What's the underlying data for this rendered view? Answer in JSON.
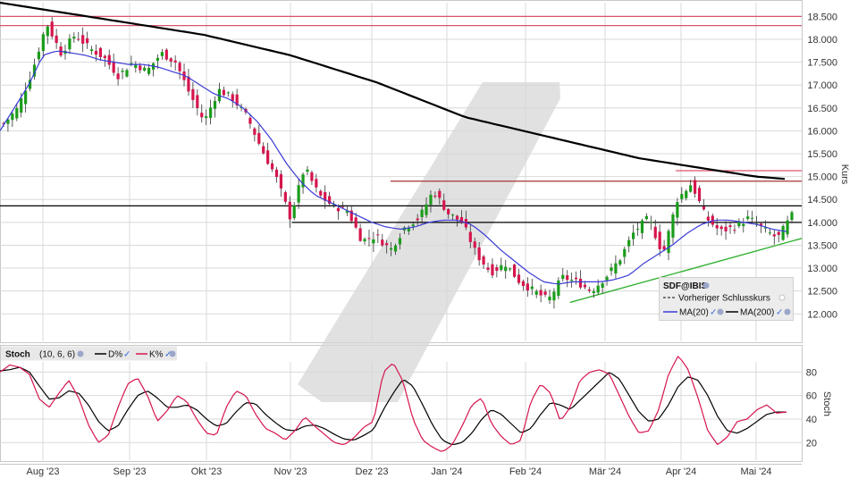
{
  "chart_data": [
    {
      "type": "candlestick",
      "symbol": "SDF@IBIS",
      "ylabel": "Kurs",
      "ylim": [
        11400,
        18800
      ],
      "yticks": [
        "12.000",
        "12.500",
        "13.000",
        "13.500",
        "14.000",
        "14.500",
        "15.000",
        "15.500",
        "16.000",
        "16.500",
        "17.000",
        "17.500",
        "18.000",
        "18.500"
      ],
      "ytick_values": [
        12000,
        12500,
        13000,
        13500,
        14000,
        14500,
        15000,
        15500,
        16000,
        16500,
        17000,
        17500,
        18000,
        18500
      ],
      "xticks": [
        "Aug '23",
        "Sep '23",
        "Okt '23",
        "Nov '23",
        "Dez '23",
        "Jan '24",
        "Feb '24",
        "Mär '24",
        "Apr '24",
        "Mai '24"
      ],
      "close_anchors": [
        16150,
        16500,
        17300,
        18350,
        17700,
        18100,
        17800,
        17600,
        17200,
        17500,
        17300,
        17700,
        17500,
        16800,
        16200,
        16900,
        16700,
        16300,
        15600,
        15000,
        14100,
        15200,
        14600,
        14350,
        14250,
        13600,
        13700,
        13400,
        13900,
        14100,
        14700,
        14200,
        14000,
        13300,
        12900,
        13100,
        12700,
        12500,
        12300,
        12800,
        12700,
        12500,
        12800,
        13200,
        13800,
        14100,
        13300,
        14500,
        14850,
        14100,
        13800,
        13900,
        14100,
        13850,
        13650,
        14150
      ],
      "ma20_anchors": [
        16000,
        16500,
        17000,
        17650,
        17750,
        17700,
        17650,
        17550,
        17500,
        17450,
        17450,
        17400,
        17300,
        17200,
        17000,
        16800,
        16700,
        16500,
        16200,
        15800,
        15300,
        14900,
        14600,
        14450,
        14300,
        14150,
        14000,
        13900,
        13850,
        13900,
        14000,
        14050,
        14050,
        13950,
        13700,
        13400,
        13150,
        12900,
        12700,
        12650,
        12700,
        12700,
        12700,
        12750,
        12850,
        13100,
        13300,
        13500,
        13750,
        13950,
        14050,
        14050,
        14000,
        13950,
        13850,
        13800
      ],
      "ma200_anchors": [
        18800,
        18700,
        18600,
        18500,
        18400,
        18300,
        18200,
        18100,
        17950,
        17800,
        17650,
        17450,
        17250,
        17050,
        16800,
        16550,
        16300,
        16150,
        16000,
        15850,
        15700,
        15550,
        15400,
        15300,
        15200,
        15100,
        15000,
        14950
      ],
      "horizontal_lines": [
        {
          "value": 18500,
          "color": "#d9536a"
        },
        {
          "value": 18300,
          "color": "#d9536a"
        },
        {
          "value": 15130,
          "color": "#d9536a",
          "from": 0.843
        },
        {
          "value": 14900,
          "color": "#a83232",
          "from": 0.487
        },
        {
          "value": 14360,
          "color": "#000000",
          "from": 0
        },
        {
          "value": 14000,
          "color": "#000000",
          "from": 0.364
        }
      ],
      "trendline": {
        "points": [
          [
            0.711,
            12250
          ],
          [
            1.0,
            13650
          ]
        ],
        "color": "#33b133"
      },
      "legend": {
        "title": "SDF@IBIS",
        "items": [
          {
            "label": "Vorheriger Schlusskurs",
            "color": "#555555",
            "style": "dashed"
          },
          {
            "label": "MA(20)",
            "color": "#3b3bd6",
            "style": "solid"
          },
          {
            "label": "MA(200)",
            "color": "#000000",
            "style": "solid"
          }
        ]
      },
      "colors": {
        "up": "#1a9c1a",
        "down": "#d6154d",
        "ma20": "#3b3bd6",
        "ma200": "#000000",
        "grid": "#d9d9d9"
      }
    },
    {
      "type": "line",
      "indicator": "Stoch",
      "params": "(10, 6, 6)",
      "ylabel": "Stoch",
      "ylim": [
        5,
        100
      ],
      "yticks": [
        "20",
        "40",
        "60",
        "80"
      ],
      "ytick_values": [
        20,
        40,
        60,
        80
      ],
      "legend": [
        {
          "label": "D%",
          "color": "#000000"
        },
        {
          "label": "K%",
          "color": "#d6154d"
        }
      ],
      "k_anchors": [
        80,
        86,
        84,
        78,
        57,
        50,
        62,
        73,
        58,
        35,
        20,
        26,
        50,
        70,
        75,
        60,
        38,
        47,
        60,
        55,
        40,
        28,
        26,
        50,
        64,
        60,
        44,
        32,
        28,
        22,
        30,
        42,
        34,
        27,
        20,
        18,
        24,
        33,
        38,
        80,
        88,
        72,
        40,
        22,
        16,
        12,
        18,
        34,
        52,
        58,
        36,
        25,
        18,
        22,
        55,
        70,
        62,
        38,
        50,
        73,
        80,
        82,
        78,
        60,
        42,
        28,
        30,
        48,
        78,
        94,
        82,
        58,
        30,
        18,
        25,
        38,
        40,
        48,
        52,
        45,
        46
      ],
      "d_anchors": [
        81,
        82,
        84,
        80,
        68,
        57,
        58,
        64,
        62,
        52,
        38,
        30,
        34,
        48,
        60,
        64,
        58,
        50,
        50,
        52,
        48,
        40,
        34,
        36,
        46,
        54,
        53,
        44,
        37,
        31,
        30,
        34,
        35,
        32,
        27,
        23,
        22,
        26,
        31,
        48,
        62,
        74,
        68,
        52,
        35,
        22,
        18,
        20,
        28,
        40,
        48,
        44,
        36,
        28,
        32,
        44,
        54,
        52,
        48,
        56,
        64,
        72,
        80,
        74,
        60,
        46,
        38,
        40,
        52,
        68,
        76,
        73,
        60,
        42,
        30,
        28,
        32,
        38,
        44,
        46,
        46
      ]
    }
  ],
  "watermark": "/"
}
